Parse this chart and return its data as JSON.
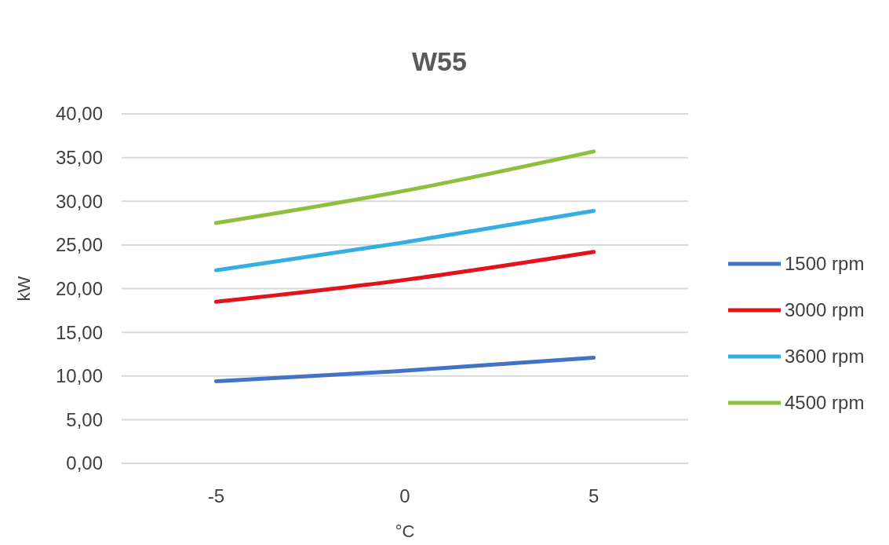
{
  "chart_data": {
    "type": "line",
    "title": "W55",
    "xlabel": "°C",
    "ylabel": "kW",
    "x": [
      -5,
      0,
      5
    ],
    "series": [
      {
        "name": "1500 rpm",
        "color": "#4472c4",
        "values": [
          9.4,
          10.6,
          12.1
        ]
      },
      {
        "name": "3000 rpm",
        "color": "#e3131b",
        "values": [
          18.5,
          21.0,
          24.2
        ]
      },
      {
        "name": "3600 rpm",
        "color": "#35aee2",
        "values": [
          22.1,
          25.3,
          28.9
        ]
      },
      {
        "name": "4500 rpm",
        "color": "#8fbf3f",
        "values": [
          27.5,
          31.2,
          35.7
        ]
      }
    ],
    "xlim": [
      -7.5,
      7.5
    ],
    "xticks": [
      -5,
      0,
      5
    ],
    "ylim": [
      0,
      40
    ],
    "yticks": [
      {
        "value": 0,
        "label": "0,00"
      },
      {
        "value": 5,
        "label": "5,00"
      },
      {
        "value": 10,
        "label": "10,00"
      },
      {
        "value": 15,
        "label": "15,00"
      },
      {
        "value": 20,
        "label": "20,00"
      },
      {
        "value": 25,
        "label": "25,00"
      },
      {
        "value": 30,
        "label": "30,00"
      },
      {
        "value": 35,
        "label": "35,00"
      },
      {
        "value": 40,
        "label": "40,00"
      }
    ],
    "grid": "y",
    "legend": "right",
    "marker": "none",
    "line_style": "solid"
  }
}
